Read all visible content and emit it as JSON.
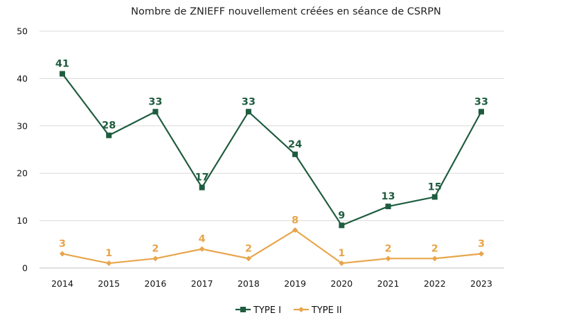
{
  "chart_data": {
    "type": "line",
    "title": "Nombre de ZNIEFF nouvellement créées en séance de CSRPN",
    "categories": [
      "2014",
      "2015",
      "2016",
      "2017",
      "2018",
      "2019",
      "2020",
      "2021",
      "2022",
      "2023"
    ],
    "series": [
      {
        "name": "TYPE I",
        "values": [
          41,
          28,
          33,
          17,
          33,
          24,
          9,
          13,
          15,
          33
        ],
        "color": "#1f5c3f",
        "marker": "square"
      },
      {
        "name": "TYPE II",
        "values": [
          3,
          1,
          2,
          4,
          2,
          8,
          1,
          2,
          2,
          3
        ],
        "color": "#e8a54b",
        "marker": "diamond"
      }
    ],
    "ylim": [
      0,
      50
    ],
    "yticks": [
      0,
      10,
      20,
      30,
      40,
      50
    ],
    "xlabel": "",
    "ylabel": "",
    "grid": true,
    "legend_position": "bottom",
    "data_labels": true
  }
}
